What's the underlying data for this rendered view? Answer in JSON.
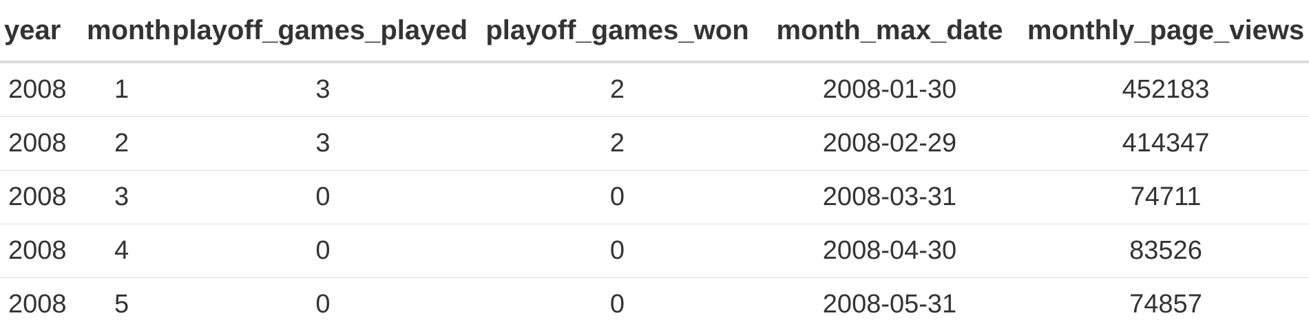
{
  "table": {
    "headers": {
      "year": "year",
      "month": "month",
      "playoff_games_played": "playoff_games_played",
      "playoff_games_won": "playoff_games_won",
      "month_max_date": "month_max_date",
      "monthly_page_views": "monthly_page_views"
    },
    "rows": [
      {
        "year": "2008",
        "month": "1",
        "playoff_games_played": "3",
        "playoff_games_won": "2",
        "month_max_date": "2008-01-30",
        "monthly_page_views": "452183"
      },
      {
        "year": "2008",
        "month": "2",
        "playoff_games_played": "3",
        "playoff_games_won": "2",
        "month_max_date": "2008-02-29",
        "monthly_page_views": "414347"
      },
      {
        "year": "2008",
        "month": "3",
        "playoff_games_played": "0",
        "playoff_games_won": "0",
        "month_max_date": "2008-03-31",
        "monthly_page_views": "74711"
      },
      {
        "year": "2008",
        "month": "4",
        "playoff_games_played": "0",
        "playoff_games_won": "0",
        "month_max_date": "2008-04-30",
        "monthly_page_views": "83526"
      },
      {
        "year": "2008",
        "month": "5",
        "playoff_games_played": "0",
        "playoff_games_won": "0",
        "month_max_date": "2008-05-31",
        "monthly_page_views": "74857"
      }
    ]
  }
}
